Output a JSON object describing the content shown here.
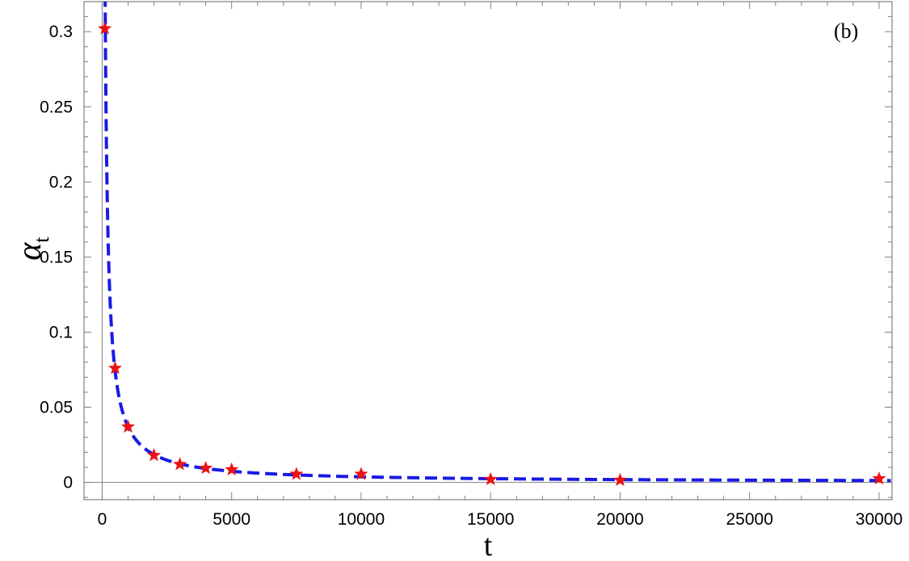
{
  "chart_data": {
    "type": "scatter",
    "panel_label": "(b)",
    "xlabel": "t",
    "ylabel_main": "α",
    "ylabel_sub": "t",
    "xlim": [
      -700,
      30500
    ],
    "ylim": [
      -0.0115,
      0.32
    ],
    "xticks": [
      0,
      5000,
      10000,
      15000,
      20000,
      25000,
      30000
    ],
    "xtick_labels": [
      "0",
      "5000",
      "10000",
      "15000",
      "20000",
      "25000",
      "30000"
    ],
    "yticks": [
      0,
      0.05,
      0.1,
      0.15,
      0.2,
      0.25,
      0.3
    ],
    "ytick_labels": [
      "0",
      "0.05",
      "0.1",
      "0.15",
      "0.2",
      "0.25",
      "0.3"
    ],
    "grid": false,
    "series": [
      {
        "kind": "markers",
        "marker": "star",
        "color": "#ee1111",
        "x": [
          100,
          500,
          1000,
          2000,
          3000,
          4000,
          5000,
          7500,
          10000,
          15000,
          20000,
          30000
        ],
        "y": [
          0.302,
          0.076,
          0.037,
          0.018,
          0.012,
          0.0095,
          0.0085,
          0.0055,
          0.0055,
          0.002,
          0.0015,
          0.0025
        ]
      },
      {
        "kind": "fit",
        "style": "dashed",
        "color": "#1a1ae6",
        "formula": "y = 37 / t",
        "coefficient": 37
      }
    ]
  }
}
